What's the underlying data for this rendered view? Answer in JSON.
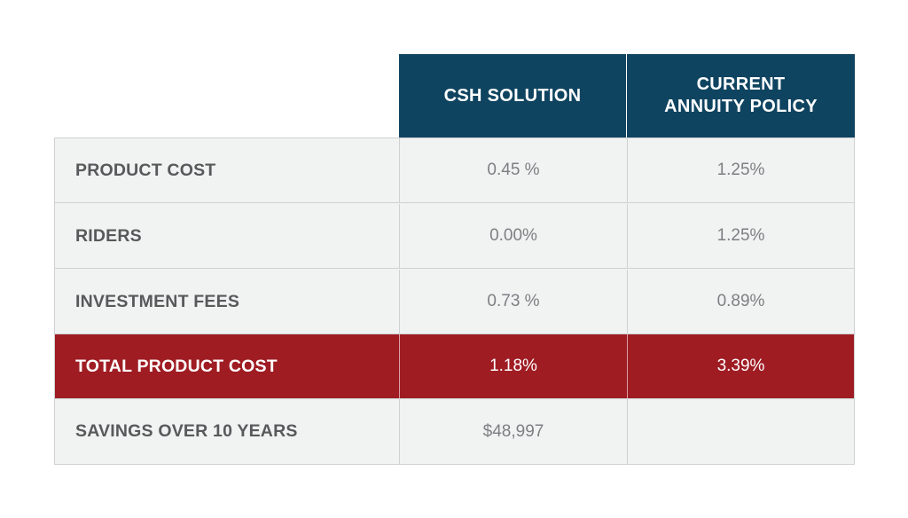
{
  "table": {
    "headers": [
      "CSH SOLUTION",
      "CURRENT\nANNUITY POLICY"
    ],
    "rows": [
      {
        "label": "PRODUCT COST",
        "csh": "0.45 %",
        "current": "1.25%"
      },
      {
        "label": "RIDERS",
        "csh": "0.00%",
        "current": "1.25%"
      },
      {
        "label": "INVESTMENT FEES",
        "csh": "0.73 %",
        "current": "0.89%"
      },
      {
        "label": "TOTAL PRODUCT COST",
        "csh": "1.18%",
        "current": "3.39%",
        "highlight": true
      },
      {
        "label": "SAVINGS OVER 10 YEARS",
        "csh": "$48,997",
        "current": ""
      }
    ]
  },
  "colors": {
    "header_bg": "#0f4460",
    "highlight_bg": "#9f1c23",
    "row_bg": "#f1f2f2",
    "grid": "#cfd1d2",
    "label_text": "#58595b",
    "value_text": "#7d7f82"
  }
}
